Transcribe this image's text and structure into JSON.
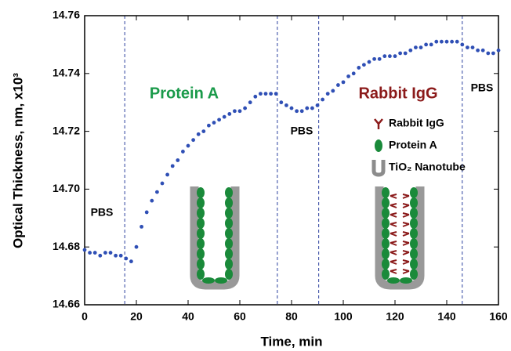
{
  "chart_data": {
    "type": "scatter",
    "x_label": "Time, min",
    "y_label": "Optical Thickness, nm, x10³",
    "xlim": [
      0,
      160
    ],
    "xticks": [
      0,
      20,
      40,
      60,
      80,
      100,
      120,
      140,
      160
    ],
    "ylim": [
      14.66,
      14.76
    ],
    "yticks": [
      14.66,
      14.68,
      {
        "value": 14.7,
        "label": "14.70"
      },
      14.72,
      14.74,
      14.76
    ],
    "vlines": [
      15.5,
      74.5,
      90.5,
      146
    ],
    "vline_color": "#2b3f9e",
    "series": [
      {
        "color": "#2f4fb5",
        "x": [
          0,
          2,
          4,
          6,
          8,
          10,
          12,
          14,
          16,
          18,
          20,
          22,
          24,
          26,
          28,
          30,
          32,
          34,
          36,
          38,
          40,
          42,
          44,
          46,
          48,
          50,
          52,
          54,
          56,
          58,
          60,
          62,
          64,
          66,
          68,
          70,
          72,
          74,
          76,
          78,
          80,
          82,
          84,
          86,
          88,
          90,
          92,
          94,
          96,
          98,
          100,
          102,
          104,
          106,
          108,
          110,
          112,
          114,
          116,
          118,
          120,
          122,
          124,
          126,
          128,
          130,
          132,
          134,
          136,
          138,
          140,
          142,
          144,
          146,
          148,
          150,
          152,
          154,
          156,
          158,
          160
        ],
        "values": [
          14.679,
          14.678,
          14.678,
          14.677,
          14.678,
          14.678,
          14.677,
          14.677,
          14.676,
          14.675,
          14.68,
          14.687,
          14.692,
          14.696,
          14.699,
          14.702,
          14.705,
          14.708,
          14.71,
          14.713,
          14.715,
          14.717,
          14.719,
          14.72,
          14.722,
          14.723,
          14.724,
          14.725,
          14.726,
          14.727,
          14.727,
          14.728,
          14.73,
          14.732,
          14.733,
          14.733,
          14.733,
          14.733,
          14.73,
          14.729,
          14.728,
          14.727,
          14.727,
          14.728,
          14.728,
          14.729,
          14.731,
          14.733,
          14.734,
          14.736,
          14.737,
          14.739,
          14.74,
          14.742,
          14.743,
          14.744,
          14.745,
          14.745,
          14.746,
          14.746,
          14.746,
          14.747,
          14.747,
          14.748,
          14.749,
          14.749,
          14.75,
          14.75,
          14.751,
          14.751,
          14.751,
          14.751,
          14.751,
          14.75,
          14.749,
          14.749,
          14.748,
          14.748,
          14.747,
          14.747,
          14.748
        ]
      }
    ],
    "annotations": [
      {
        "text": "PBS",
        "color": "#000000"
      },
      {
        "text": "Protein A",
        "color": "#1a9a4a"
      },
      {
        "text": "PBS",
        "color": "#000000"
      },
      {
        "text": "Rabbit IgG",
        "color": "#8b1a1a"
      },
      {
        "text": "PBS",
        "color": "#000000"
      }
    ],
    "legend": [
      {
        "label": "Rabbit IgG",
        "color": "#8b1a1a"
      },
      {
        "label": "Protein A",
        "color": "#1a8a3a"
      },
      {
        "label": "TiO₂ Nanotube",
        "color": "#8c8c8c"
      }
    ]
  }
}
